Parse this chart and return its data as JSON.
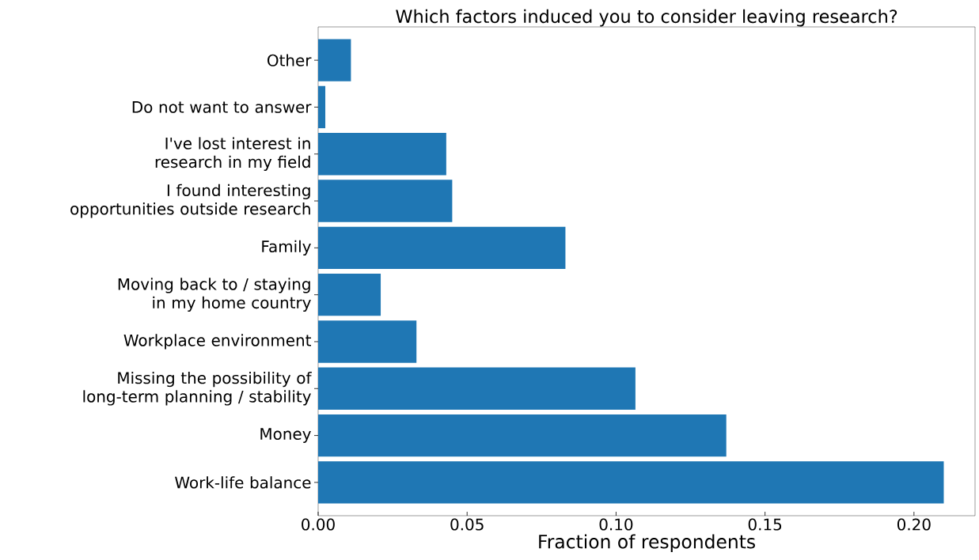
{
  "chart_data": {
    "type": "bar",
    "orientation": "horizontal",
    "title": "Which factors induced you to consider leaving research?",
    "xlabel": "Fraction of respondents",
    "categories": [
      "Other",
      "Do not want to answer",
      "I've lost interest in research in my field",
      "I found interesting opportunities outside research",
      "Family",
      "Moving back to / staying in my home country",
      "Workplace environment",
      "Missing the possibility of long-term planning / stability",
      "Money",
      "Work-life balance"
    ],
    "values": [
      0.011,
      0.0024,
      0.043,
      0.045,
      0.083,
      0.021,
      0.033,
      0.1065,
      0.137,
      0.21
    ],
    "color": "#1f77b4",
    "xlim": [
      0,
      0.2205
    ],
    "xticks": [
      {
        "value": 0,
        "label": "0.00"
      },
      {
        "value": 0.05,
        "label": "0.05"
      },
      {
        "value": 0.1,
        "label": "0.10"
      },
      {
        "value": 0.15,
        "label": "0.15"
      },
      {
        "value": 0.2,
        "label": "0.20"
      }
    ],
    "grid": false
  }
}
